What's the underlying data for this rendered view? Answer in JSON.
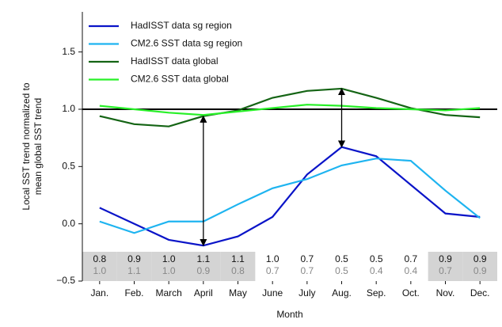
{
  "chart_data": {
    "type": "line",
    "ylabel": [
      "Local SST trend normalized to",
      "mean global SST trend"
    ],
    "xlabel": "Month",
    "categories": [
      "Jan.",
      "Feb.",
      "March",
      "April",
      "May",
      "June",
      "July",
      "Aug.",
      "Sep.",
      "Oct.",
      "Nov.",
      "Dec."
    ],
    "series": [
      {
        "name": "HadISST data sg region",
        "color": "#0a14c8",
        "values": [
          0.14,
          0.0,
          -0.14,
          -0.19,
          -0.11,
          0.06,
          0.43,
          0.67,
          0.59,
          0.34,
          0.09,
          0.06
        ]
      },
      {
        "name": "CM2.6 SST data sg region",
        "color": "#1eb4f0",
        "values": [
          0.02,
          -0.08,
          0.02,
          0.02,
          0.17,
          0.31,
          0.39,
          0.51,
          0.57,
          0.55,
          0.29,
          0.05
        ]
      },
      {
        "name": "HadISST data global",
        "color": "#146414",
        "values": [
          0.94,
          0.87,
          0.85,
          0.94,
          0.99,
          1.1,
          1.16,
          1.18,
          1.1,
          1.01,
          0.95,
          0.93
        ]
      },
      {
        "name": "CM2.6 SST data global",
        "color": "#28f028",
        "values": [
          1.03,
          1.0,
          0.97,
          0.95,
          0.98,
          1.01,
          1.04,
          1.03,
          1.01,
          1.0,
          0.99,
          1.01
        ]
      }
    ],
    "ylim": [
      -0.5,
      1.85
    ],
    "yticks": [
      {
        "value": -0.5,
        "label": "−0.5"
      },
      {
        "value": 0,
        "label": "0.0"
      },
      0.5,
      {
        "value": 1,
        "label": "1.0"
      },
      1.5
    ],
    "hline": 1,
    "arrows": [
      {
        "x": 4,
        "y": [
          0.94,
          -0.19
        ]
      },
      {
        "x": 8,
        "y": [
          1.18,
          0.67
        ]
      }
    ],
    "table": {
      "rows": [
        [
          "0.8",
          "0.9",
          "1.0",
          "1.1",
          "1.1",
          "1.0",
          "0.7",
          "0.5",
          "0.5",
          "0.7",
          "0.9",
          "0.9"
        ],
        [
          "1.0",
          "1.1",
          "1.0",
          "0.9",
          "0.8",
          "0.7",
          "0.7",
          "0.5",
          "0.4",
          "0.4",
          "0.7",
          "0.9"
        ]
      ],
      "row_colors": [
        "#111111",
        "#888888"
      ],
      "shaded": [
        true,
        true,
        true,
        true,
        true,
        false,
        false,
        false,
        false,
        false,
        true,
        true
      ],
      "shade_color": "#d4d4d4"
    }
  }
}
